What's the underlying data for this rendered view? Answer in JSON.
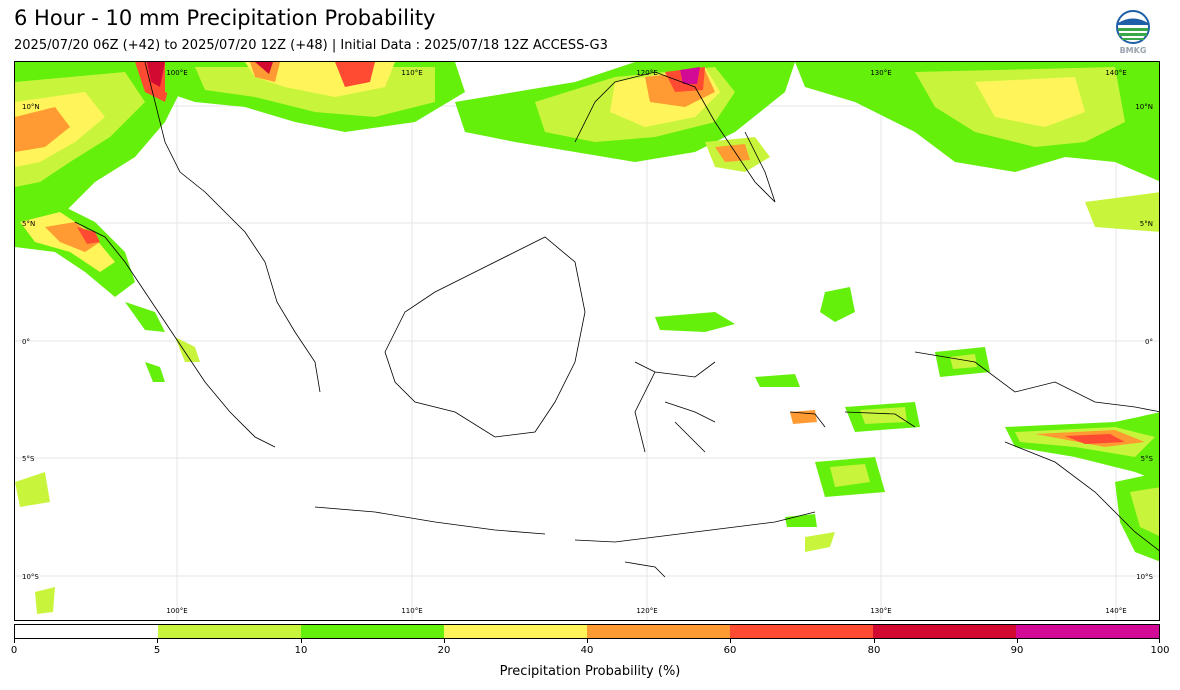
{
  "header": {
    "title": "6 Hour - 10 mm Precipitation Probability",
    "subtitle": "2025/07/20 06Z (+42) to 2025/07/20 12Z (+48) | Initial Data : 2025/07/18 12Z ACCESS-G3"
  },
  "logo": {
    "icon": "bmkg-logo-icon",
    "text": "BMKG"
  },
  "map": {
    "lon_labels_top": [
      "100°E",
      "110°E",
      "120°E",
      "130°E",
      "140°E"
    ],
    "lon_labels_bottom": [
      "100°E",
      "110°E",
      "120°E",
      "130°E",
      "140°E"
    ],
    "lat_labels_left": [
      "10°N",
      "5°N",
      "0°",
      "5°S",
      "10°S"
    ],
    "lat_labels_right": [
      "10°N",
      "5°N",
      "0°",
      "5°S",
      "10°S"
    ]
  },
  "colorbar": {
    "title": "Precipitation Probability (%)",
    "ticks": [
      "0",
      "5",
      "10",
      "20",
      "40",
      "60",
      "80",
      "90",
      "100"
    ],
    "colors": [
      "#ffffff",
      "#c8f53c",
      "#64f00a",
      "#fff55a",
      "#ff9b32",
      "#ff4b32",
      "#d20a32",
      "#d20a96"
    ]
  }
}
